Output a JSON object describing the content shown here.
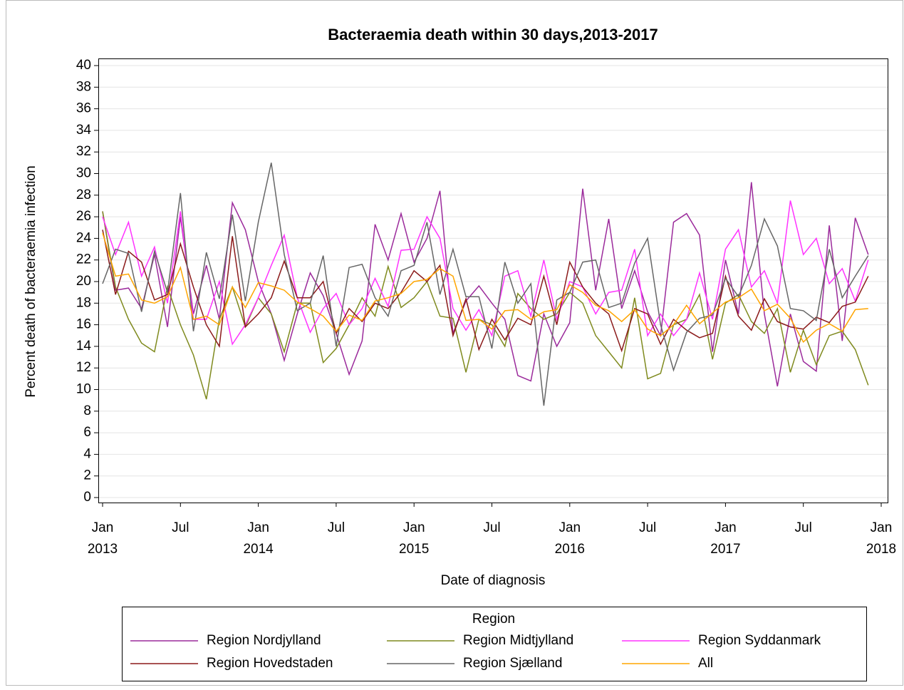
{
  "chart_data": {
    "type": "line",
    "title": "Bacteraemia death within 30 days,2013-2017",
    "x_label": "Date of diagnosis",
    "y_label": "Percent death of bacteraemia infection",
    "x": [
      "2013-01",
      "2013-02",
      "2013-03",
      "2013-04",
      "2013-05",
      "2013-06",
      "2013-07",
      "2013-08",
      "2013-09",
      "2013-10",
      "2013-11",
      "2013-12",
      "2014-01",
      "2014-02",
      "2014-03",
      "2014-04",
      "2014-05",
      "2014-06",
      "2014-07",
      "2014-08",
      "2014-09",
      "2014-10",
      "2014-11",
      "2014-12",
      "2015-01",
      "2015-02",
      "2015-03",
      "2015-04",
      "2015-05",
      "2015-06",
      "2015-07",
      "2015-08",
      "2015-09",
      "2015-10",
      "2015-11",
      "2015-12",
      "2016-01",
      "2016-02",
      "2016-03",
      "2016-04",
      "2016-05",
      "2016-06",
      "2016-07",
      "2016-08",
      "2016-09",
      "2016-10",
      "2016-11",
      "2016-12",
      "2017-01",
      "2017-02",
      "2017-03",
      "2017-04",
      "2017-05",
      "2017-06",
      "2017-07",
      "2017-08",
      "2017-09",
      "2017-10",
      "2017-11",
      "2017-12"
    ],
    "xlim": [
      "2013-01",
      "2018-01"
    ],
    "xticks": [
      {
        "value": "2013-01",
        "label": [
          "Jan",
          "2013"
        ]
      },
      {
        "value": "2013-07",
        "label": [
          "Jul"
        ]
      },
      {
        "value": "2014-01",
        "label": [
          "Jan",
          "2014"
        ]
      },
      {
        "value": "2014-07",
        "label": [
          "Jul"
        ]
      },
      {
        "value": "2015-01",
        "label": [
          "Jan",
          "2015"
        ]
      },
      {
        "value": "2015-07",
        "label": [
          "Jul"
        ]
      },
      {
        "value": "2016-01",
        "label": [
          "Jan",
          "2016"
        ]
      },
      {
        "value": "2016-07",
        "label": [
          "Jul"
        ]
      },
      {
        "value": "2017-01",
        "label": [
          "Jan",
          "2017"
        ]
      },
      {
        "value": "2017-07",
        "label": [
          "Jul"
        ]
      },
      {
        "value": "2018-01",
        "label": [
          "Jan",
          "2018"
        ]
      }
    ],
    "ylim": [
      0,
      40
    ],
    "yticks": [
      0,
      2,
      4,
      6,
      8,
      10,
      12,
      14,
      16,
      18,
      20,
      22,
      24,
      26,
      28,
      30,
      32,
      34,
      36,
      38,
      40
    ],
    "grid": true,
    "legend_title": "Region",
    "legend_position": "bottom",
    "series": [
      {
        "name": "Region Nordjylland",
        "color": "#9b2a9b",
        "values": [
          26.5,
          19.2,
          19.4,
          17.5,
          22.5,
          15.8,
          26,
          17,
          21.5,
          16.5,
          27.3,
          24.8,
          20,
          17,
          12.7,
          17,
          20.8,
          18.7,
          15.2,
          11.4,
          14.5,
          25.3,
          22,
          26.3,
          21.8,
          24,
          28.4,
          15.2,
          18.2,
          19.6,
          18,
          16.5,
          11.3,
          10.8,
          17,
          14,
          16.2,
          28.6,
          19.2,
          25.8,
          17.5,
          21,
          17.2,
          15,
          25.5,
          26.3,
          24.3,
          13.5,
          22,
          17,
          29.2,
          17,
          10.3,
          17,
          12.6,
          11.7,
          25.2,
          14.5,
          25.9,
          22.5
        ]
      },
      {
        "name": "Region Midtjylland",
        "color": "#7f8a1e",
        "values": [
          26.5,
          19.5,
          16.5,
          14.3,
          13.5,
          19.5,
          16,
          13.2,
          9.1,
          16.5,
          19.5,
          15.8,
          18.5,
          17,
          13.5,
          18,
          18,
          12.5,
          13.8,
          16,
          18.5,
          16.8,
          21.4,
          17.6,
          18.5,
          20,
          16.8,
          16.6,
          11.6,
          16.5,
          16,
          14,
          18.9,
          17.5,
          16.5,
          17,
          19,
          18,
          15,
          13.5,
          12,
          18.5,
          11,
          11.5,
          16,
          16.5,
          18.8,
          12.8,
          18,
          18.8,
          16.3,
          15.2,
          17.5,
          11.6,
          15.5,
          12.3,
          15,
          15.4,
          13.7,
          10.4
        ]
      },
      {
        "name": "Region Syddanmark",
        "color": "#ff33ff",
        "values": [
          26,
          22.5,
          25.5,
          20.5,
          23.2,
          18,
          26.5,
          16.5,
          16.5,
          20,
          14.2,
          16,
          18.5,
          21.5,
          24.3,
          18.5,
          15.3,
          17.5,
          18.9,
          16,
          17.5,
          20.3,
          17.7,
          22.9,
          23,
          26,
          24,
          17.5,
          15.5,
          17.4,
          15,
          20.5,
          21,
          16.8,
          22,
          16.5,
          20,
          19.5,
          17,
          19,
          19.2,
          23,
          15,
          17,
          15,
          16.5,
          20.8,
          16.5,
          23,
          24.8,
          19.5,
          21,
          18,
          27.5,
          22.5,
          24,
          19.8,
          21.2,
          18.2,
          22
        ]
      },
      {
        "name": "Region Hovedstaden",
        "color": "#8b1a1a",
        "values": [
          24.8,
          18.8,
          22.8,
          21.8,
          18.3,
          18.8,
          23.5,
          19.5,
          16,
          14,
          24.2,
          15.8,
          17,
          18.5,
          21.9,
          18.5,
          18.5,
          20,
          15.2,
          17.5,
          16.3,
          18,
          17.5,
          19,
          21,
          20,
          21.5,
          15,
          18.4,
          13.7,
          16.5,
          14.6,
          16.6,
          16,
          20.5,
          16,
          21.8,
          19.5,
          18,
          17,
          13.6,
          17.5,
          17,
          14.2,
          16.5,
          15.5,
          14.8,
          15.2,
          20.5,
          16.8,
          15.5,
          18.4,
          16.3,
          15.8,
          15.6,
          16.7,
          16.2,
          17.7,
          18.1,
          20.5
        ]
      },
      {
        "name": "Region Sjælland",
        "color": "#666666",
        "values": [
          19.8,
          23,
          22.6,
          17.2,
          22.8,
          19,
          28.2,
          15.4,
          22.7,
          18.4,
          26.2,
          18.2,
          25.5,
          31,
          22.5,
          17.3,
          18,
          22.4,
          14,
          21.3,
          21.6,
          18.5,
          16.8,
          21,
          21.5,
          25.5,
          18.8,
          23,
          18.6,
          18.6,
          13.8,
          21.8,
          18,
          19.8,
          8.5,
          18.3,
          19,
          21.8,
          22,
          17.6,
          18,
          21.7,
          24,
          16,
          11.8,
          15.3,
          16.6,
          16.9,
          20.3,
          18.6,
          21.5,
          25.8,
          23.3,
          17.5,
          17.3,
          16.4,
          23,
          18.5,
          20.5,
          22.4
        ]
      },
      {
        "name": "All",
        "color": "#ffa500",
        "values": [
          24.5,
          20.5,
          20.7,
          18.3,
          18,
          18.6,
          21.3,
          16.5,
          16.8,
          16,
          19.5,
          17.6,
          19.9,
          19.6,
          19.2,
          18.1,
          17.5,
          16.8,
          15.4,
          16.9,
          16.4,
          18.2,
          18.5,
          18.9,
          20,
          20.2,
          21.2,
          20.5,
          16.4,
          16.5,
          15.6,
          17.3,
          17.4,
          16.5,
          17.2,
          17.4,
          19.7,
          19,
          17.8,
          17.3,
          16.3,
          17.4,
          15.6,
          15,
          16,
          17.8,
          16.1,
          17.1,
          18.1,
          18.5,
          19.3,
          17.3,
          17.9,
          16.6,
          14.4,
          15.5,
          16.1,
          15.4,
          17.4,
          17.5
        ]
      }
    ]
  }
}
